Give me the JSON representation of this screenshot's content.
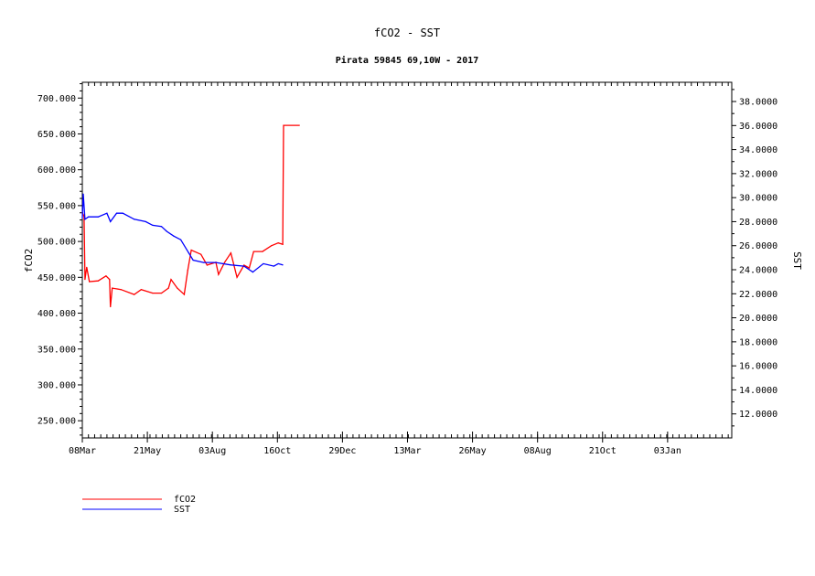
{
  "chart_data": {
    "type": "line",
    "title": "fCO2 - SST",
    "subtitle": "Pirata 59845 69,10W - 2017",
    "xlabel": "",
    "ylabel_left": "fCO2",
    "ylabel_right": "SST",
    "xlim": [
      "2017-03-08",
      "2019-03-17"
    ],
    "ylim_left": [
      226,
      722
    ],
    "ylim_right": [
      10,
      39.6
    ],
    "x_ticks": [
      {
        "date": "2017-03-08",
        "label": "08Mar"
      },
      {
        "date": "2017-05-21",
        "label": "21May"
      },
      {
        "date": "2017-08-03",
        "label": "03Aug"
      },
      {
        "date": "2017-10-16",
        "label": "16Oct"
      },
      {
        "date": "2017-12-29",
        "label": "29Dec"
      },
      {
        "date": "2018-03-13",
        "label": "13Mar"
      },
      {
        "date": "2018-05-26",
        "label": "26May"
      },
      {
        "date": "2018-08-08",
        "label": "08Aug"
      },
      {
        "date": "2018-10-21",
        "label": "21Oct"
      },
      {
        "date": "2019-01-03",
        "label": "03Jan"
      }
    ],
    "y_ticks_left": [
      "250.000",
      "300.000",
      "350.000",
      "400.000",
      "450.000",
      "500.000",
      "550.000",
      "600.000",
      "650.000",
      "700.000"
    ],
    "y_ticks_right": [
      "12.0000",
      "14.0000",
      "16.0000",
      "18.0000",
      "20.0000",
      "22.0000",
      "24.0000",
      "26.0000",
      "28.0000",
      "30.0000",
      "32.0000",
      "34.0000",
      "36.0000",
      "38.0000"
    ],
    "grid": false,
    "legend_placement": "bottom-left",
    "series": [
      {
        "name": "fCO2",
        "axis": "left",
        "color": "#ff0000",
        "x": [
          "2017-03-08",
          "2017-03-10",
          "2017-03-11",
          "2017-03-13",
          "2017-03-16",
          "2017-03-26",
          "2017-04-04",
          "2017-04-08",
          "2017-04-09",
          "2017-04-11",
          "2017-04-21",
          "2017-05-06",
          "2017-05-14",
          "2017-05-27",
          "2017-06-06",
          "2017-06-14",
          "2017-06-17",
          "2017-06-24",
          "2017-07-02",
          "2017-07-06",
          "2017-07-10",
          "2017-07-21",
          "2017-07-28",
          "2017-08-07",
          "2017-08-10",
          "2017-08-17",
          "2017-08-24",
          "2017-08-31",
          "2017-09-08",
          "2017-09-14",
          "2017-09-19",
          "2017-09-29",
          "2017-10-09",
          "2017-10-17",
          "2017-10-22",
          "2017-10-23",
          "2017-11-10"
        ],
        "y": [
          540,
          535,
          447,
          464,
          444,
          445,
          452,
          447,
          409,
          435,
          433,
          426,
          433,
          428,
          428,
          435,
          447,
          435,
          426,
          460,
          488,
          482,
          467,
          471,
          454,
          471,
          484,
          450,
          467,
          463,
          486,
          486,
          494,
          498,
          496,
          662,
          662
        ]
      },
      {
        "name": "SST",
        "axis": "right",
        "color": "#0000ff",
        "x": [
          "2017-03-08",
          "2017-03-09",
          "2017-03-11",
          "2017-03-15",
          "2017-03-26",
          "2017-04-05",
          "2017-04-09",
          "2017-04-16",
          "2017-04-23",
          "2017-05-06",
          "2017-05-19",
          "2017-05-27",
          "2017-06-06",
          "2017-06-12",
          "2017-06-20",
          "2017-06-28",
          "2017-07-07",
          "2017-07-12",
          "2017-07-24",
          "2017-08-07",
          "2017-08-24",
          "2017-09-08",
          "2017-09-18",
          "2017-09-30",
          "2017-10-12",
          "2017-10-17",
          "2017-10-22"
        ],
        "y": [
          28.3,
          30.3,
          28.2,
          28.4,
          28.4,
          28.7,
          28.0,
          28.7,
          28.7,
          28.2,
          28.0,
          27.7,
          27.6,
          27.2,
          26.8,
          26.5,
          25.4,
          24.8,
          24.6,
          24.6,
          24.4,
          24.3,
          23.8,
          24.5,
          24.3,
          24.5,
          24.4
        ]
      }
    ]
  }
}
